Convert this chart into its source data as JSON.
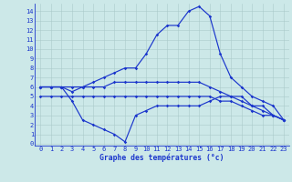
{
  "hours": [
    0,
    1,
    2,
    3,
    4,
    5,
    6,
    7,
    8,
    9,
    10,
    11,
    12,
    13,
    14,
    15,
    16,
    17,
    18,
    19,
    20,
    21,
    22,
    23
  ],
  "line1": [
    6,
    6,
    6,
    6,
    6,
    6,
    6,
    6.5,
    6.5,
    6.5,
    6.5,
    6.5,
    6.5,
    6.5,
    6.5,
    6.5,
    6,
    5.5,
    5,
    4.5,
    4,
    3.5,
    3,
    2.5
  ],
  "line2": [
    5,
    5,
    5,
    5,
    5,
    5,
    5,
    5,
    5,
    5,
    5,
    5,
    5,
    5,
    5,
    5,
    5,
    4.5,
    4.5,
    4,
    3.5,
    3,
    3,
    2.5
  ],
  "line3": [
    6,
    6,
    6,
    5.5,
    6,
    6.5,
    7,
    7.5,
    8,
    8,
    9.5,
    11.5,
    12.5,
    12.5,
    14,
    14.5,
    13.5,
    9.5,
    7,
    6,
    5,
    4.5,
    4,
    2.5
  ],
  "line4": [
    6,
    6,
    6,
    4.5,
    2.5,
    2,
    1.5,
    1,
    0.2,
    3,
    3.5,
    4,
    4,
    4,
    4,
    4,
    4.5,
    5,
    5,
    5,
    4,
    4,
    3,
    2.5
  ],
  "background_color": "#cce8e8",
  "line_color": "#1a35cc",
  "grid_color": "#aacaca",
  "xlabel": "Graphe des températures (°c)",
  "ylabel_ticks": [
    0,
    1,
    2,
    3,
    4,
    5,
    6,
    7,
    8,
    9,
    10,
    11,
    12,
    13,
    14
  ],
  "xticks": [
    0,
    1,
    2,
    3,
    4,
    5,
    6,
    7,
    8,
    9,
    10,
    11,
    12,
    13,
    14,
    15,
    16,
    17,
    18,
    19,
    20,
    21,
    22,
    23
  ],
  "xlim": [
    -0.5,
    23.5
  ],
  "ylim": [
    -0.2,
    14.8
  ]
}
